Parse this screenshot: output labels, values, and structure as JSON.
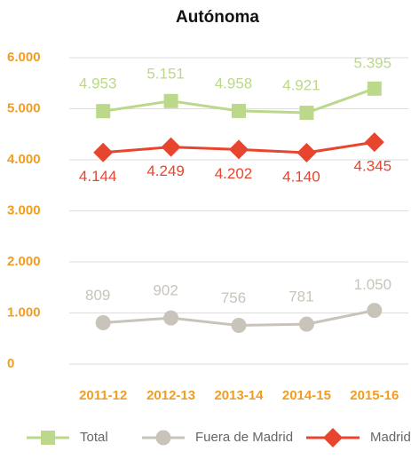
{
  "chart_data": {
    "type": "line",
    "title": "Autónoma",
    "categories": [
      "2011-12",
      "2012-13",
      "2013-14",
      "2014-15",
      "2015-16"
    ],
    "series": [
      {
        "name": "Total",
        "color": "#bcd88a",
        "marker": "square",
        "values": [
          4953,
          5151,
          4958,
          4921,
          5395
        ],
        "value_labels": [
          "4.953",
          "5.151",
          "4.958",
          "4.921",
          "5.395"
        ]
      },
      {
        "name": "Fuera de Madrid",
        "color": "#c9c4ba",
        "marker": "circle",
        "values": [
          809,
          902,
          756,
          781,
          1050
        ],
        "value_labels": [
          "809",
          "902",
          "756",
          "781",
          "1.050"
        ]
      },
      {
        "name": "Madrid",
        "color": "#e8452f",
        "marker": "diamond",
        "values": [
          4144,
          4249,
          4202,
          4140,
          4345
        ],
        "value_labels": [
          "4.144",
          "4.249",
          "4.202",
          "4.140",
          "4.345"
        ]
      }
    ],
    "ylim": [
      0,
      6000
    ],
    "yticks": [
      {
        "value": 0,
        "label": "0"
      },
      {
        "value": 1000,
        "label": "1.000"
      },
      {
        "value": 2000,
        "label": "2.000"
      },
      {
        "value": 3000,
        "label": "3.000"
      },
      {
        "value": 4000,
        "label": "4.000"
      },
      {
        "value": 5000,
        "label": "5.000"
      },
      {
        "value": 6000,
        "label": "6.000"
      }
    ],
    "grid": true,
    "legend": "bottom"
  }
}
